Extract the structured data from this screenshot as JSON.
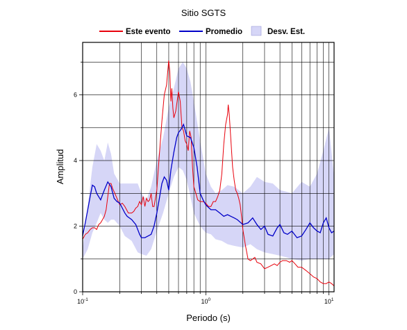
{
  "chart_data": {
    "type": "line",
    "title": "Sitio SGTS",
    "xlabel": "Periodo (s)",
    "ylabel": "Amplitud",
    "x_scale": "log",
    "xlim": [
      0.1,
      11
    ],
    "ylim": [
      0,
      7.6
    ],
    "x_ticks": [
      {
        "value": 0.1,
        "base": "10",
        "exp": "-1"
      },
      {
        "value": 1,
        "base": "10",
        "exp": "0"
      },
      {
        "value": 10,
        "base": "10",
        "exp": "1"
      }
    ],
    "y_ticks": [
      0,
      2,
      4,
      6
    ],
    "grid": true,
    "legend_position": "top",
    "legend": [
      {
        "label": "Este evento",
        "kind": "line",
        "color": "#e8000b"
      },
      {
        "label": "Promedio",
        "kind": "line",
        "color": "#0000c8"
      },
      {
        "label": "Desv. Est.",
        "kind": "band",
        "color": "#d6d6f7"
      }
    ],
    "band": {
      "name": "Desv. Est.",
      "color": "#d6d6f7",
      "x": [
        0.1,
        0.11,
        0.12,
        0.13,
        0.14,
        0.15,
        0.16,
        0.17,
        0.18,
        0.2,
        0.22,
        0.25,
        0.28,
        0.3,
        0.33,
        0.36,
        0.4,
        0.45,
        0.5,
        0.55,
        0.6,
        0.65,
        0.7,
        0.75,
        0.8,
        0.9,
        1.0,
        1.1,
        1.2,
        1.35,
        1.5,
        1.7,
        2.0,
        2.3,
        2.6,
        3.0,
        3.5,
        4.0,
        4.5,
        5.0,
        6.0,
        7.0,
        8.0,
        9.0,
        10.0,
        11.0
      ],
      "upper": [
        1.3,
        2.6,
        3.8,
        4.5,
        4.3,
        4.0,
        4.55,
        4.2,
        3.6,
        3.3,
        3.3,
        3.3,
        3.3,
        3.0,
        2.8,
        3.2,
        4.0,
        4.7,
        5.6,
        6.2,
        6.8,
        7.0,
        6.8,
        6.4,
        5.8,
        4.6,
        3.6,
        3.2,
        3.0,
        3.1,
        3.25,
        3.2,
        3.0,
        3.2,
        3.5,
        3.35,
        3.3,
        3.1,
        3.05,
        3.0,
        3.35,
        3.2,
        3.6,
        4.3,
        5.0,
        3.5
      ],
      "lower": [
        1.0,
        1.3,
        1.8,
        2.1,
        2.4,
        2.2,
        2.1,
        2.2,
        2.2,
        2.0,
        1.7,
        1.55,
        1.2,
        1.15,
        1.1,
        1.3,
        1.85,
        2.4,
        3.0,
        3.5,
        3.8,
        3.7,
        3.4,
        2.9,
        2.4,
        2.0,
        1.8,
        1.75,
        1.6,
        1.55,
        1.45,
        1.4,
        1.35,
        1.45,
        1.3,
        1.2,
        1.15,
        1.1,
        1.05,
        1.0,
        0.95,
        1.0,
        1.0,
        1.0,
        1.0,
        1.15
      ]
    },
    "series": [
      {
        "name": "Este evento",
        "color": "#e8000b",
        "x": [
          0.1,
          0.105,
          0.11,
          0.115,
          0.12,
          0.125,
          0.13,
          0.135,
          0.14,
          0.145,
          0.15,
          0.155,
          0.16,
          0.165,
          0.17,
          0.175,
          0.18,
          0.19,
          0.2,
          0.21,
          0.22,
          0.235,
          0.25,
          0.26,
          0.27,
          0.28,
          0.29,
          0.3,
          0.31,
          0.32,
          0.33,
          0.34,
          0.35,
          0.36,
          0.37,
          0.38,
          0.4,
          0.42,
          0.44,
          0.46,
          0.48,
          0.5,
          0.51,
          0.52,
          0.53,
          0.54,
          0.55,
          0.57,
          0.6,
          0.62,
          0.64,
          0.66,
          0.68,
          0.7,
          0.72,
          0.74,
          0.76,
          0.78,
          0.8,
          0.83,
          0.86,
          0.9,
          0.95,
          1.0,
          1.05,
          1.1,
          1.15,
          1.2,
          1.25,
          1.3,
          1.35,
          1.4,
          1.45,
          1.5,
          1.52,
          1.55,
          1.6,
          1.65,
          1.7,
          1.75,
          1.8,
          1.85,
          1.9,
          1.95,
          2.0,
          2.1,
          2.2,
          2.3,
          2.4,
          2.5,
          2.6,
          2.8,
          3.0,
          3.2,
          3.4,
          3.6,
          3.8,
          4.0,
          4.2,
          4.5,
          4.8,
          5.0,
          5.3,
          5.6,
          6.0,
          6.5,
          7.0,
          7.5,
          8.0,
          8.5,
          9.0,
          9.5,
          10.0,
          10.5,
          11.0
        ],
        "y": [
          1.6,
          1.75,
          1.8,
          1.9,
          1.95,
          1.95,
          1.9,
          2.05,
          2.1,
          2.2,
          2.3,
          2.5,
          2.9,
          3.3,
          3.3,
          3.15,
          3.05,
          2.85,
          2.65,
          2.7,
          2.6,
          2.4,
          2.4,
          2.45,
          2.55,
          2.6,
          2.75,
          2.65,
          2.9,
          2.6,
          2.85,
          2.75,
          2.8,
          3.0,
          2.6,
          2.6,
          3.1,
          4.2,
          5.2,
          6.0,
          6.3,
          7.05,
          6.7,
          5.8,
          6.2,
          5.6,
          5.3,
          5.5,
          6.1,
          5.8,
          5.0,
          4.9,
          4.6,
          4.5,
          4.3,
          4.9,
          4.7,
          3.8,
          3.2,
          3.0,
          2.8,
          2.75,
          2.75,
          2.7,
          2.6,
          2.6,
          2.75,
          2.75,
          2.9,
          3.1,
          3.6,
          4.5,
          5.1,
          5.4,
          5.7,
          5.4,
          4.6,
          3.8,
          3.4,
          3.1,
          3.0,
          2.85,
          2.65,
          2.3,
          1.9,
          1.4,
          1.0,
          0.95,
          1.0,
          1.05,
          0.9,
          0.85,
          0.7,
          0.75,
          0.8,
          0.85,
          0.8,
          0.9,
          0.95,
          0.95,
          0.9,
          0.95,
          0.85,
          0.75,
          0.75,
          0.65,
          0.55,
          0.45,
          0.4,
          0.3,
          0.25,
          0.25,
          0.3,
          0.25,
          0.18
        ]
      },
      {
        "name": "Promedio",
        "color": "#0000c8",
        "x": [
          0.1,
          0.105,
          0.11,
          0.115,
          0.12,
          0.125,
          0.13,
          0.14,
          0.15,
          0.16,
          0.17,
          0.18,
          0.19,
          0.2,
          0.21,
          0.22,
          0.23,
          0.25,
          0.27,
          0.29,
          0.3,
          0.32,
          0.34,
          0.36,
          0.38,
          0.4,
          0.42,
          0.44,
          0.46,
          0.48,
          0.5,
          0.52,
          0.55,
          0.58,
          0.6,
          0.63,
          0.66,
          0.7,
          0.75,
          0.8,
          0.85,
          0.9,
          0.95,
          1.0,
          1.1,
          1.2,
          1.3,
          1.4,
          1.5,
          1.6,
          1.7,
          1.8,
          2.0,
          2.2,
          2.4,
          2.6,
          2.8,
          3.0,
          3.2,
          3.5,
          3.8,
          4.0,
          4.3,
          4.6,
          5.0,
          5.5,
          6.0,
          6.5,
          7.0,
          7.5,
          8.0,
          8.5,
          9.0,
          9.5,
          10.0,
          10.5,
          11.0
        ],
        "y": [
          1.7,
          2.1,
          2.5,
          2.9,
          3.25,
          3.2,
          3.0,
          2.8,
          3.1,
          3.35,
          3.2,
          2.85,
          2.75,
          2.7,
          2.55,
          2.4,
          2.3,
          2.2,
          2.05,
          1.75,
          1.65,
          1.65,
          1.7,
          1.75,
          2.0,
          2.4,
          2.85,
          3.3,
          3.5,
          3.4,
          3.1,
          3.7,
          4.25,
          4.7,
          4.85,
          4.95,
          5.1,
          4.75,
          4.7,
          4.4,
          3.8,
          3.0,
          2.8,
          2.65,
          2.5,
          2.5,
          2.4,
          2.3,
          2.35,
          2.3,
          2.25,
          2.2,
          2.05,
          2.1,
          2.25,
          2.05,
          1.9,
          2.0,
          1.75,
          1.7,
          1.95,
          2.05,
          1.8,
          1.75,
          1.85,
          1.65,
          1.7,
          1.9,
          2.1,
          1.95,
          1.85,
          1.8,
          2.1,
          2.25,
          1.95,
          1.8,
          1.85
        ]
      }
    ]
  }
}
